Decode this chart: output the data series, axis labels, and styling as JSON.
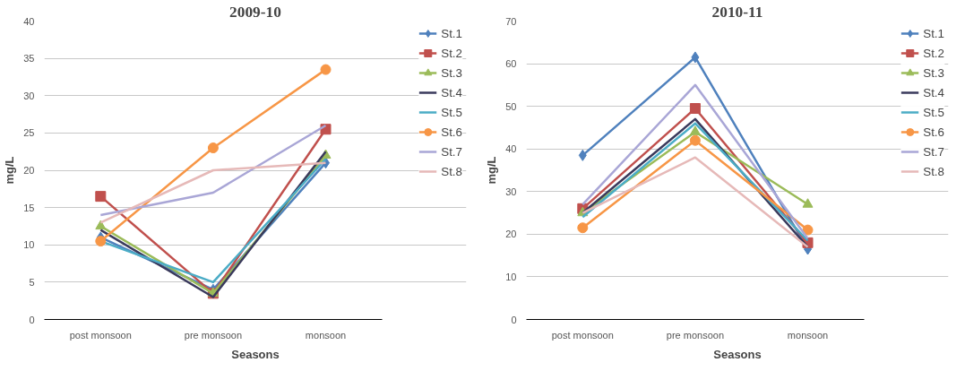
{
  "chart_data": [
    {
      "type": "line",
      "title": "2009-10",
      "xlabel": "Seasons",
      "ylabel": "mg/L",
      "categories": [
        "post monsoon",
        "pre monsoon",
        "monsoon"
      ],
      "ylim": [
        0,
        40
      ],
      "yticks": [
        0,
        5,
        10,
        15,
        20,
        25,
        30,
        35,
        40
      ],
      "grid": "y",
      "legend": "right",
      "series": [
        {
          "name": "St.1",
          "color": "#4f81bd",
          "marker": "diamond",
          "values": [
            11,
            4,
            21
          ]
        },
        {
          "name": "St.2",
          "color": "#c0504d",
          "marker": "square",
          "values": [
            16.5,
            3.5,
            25.5
          ]
        },
        {
          "name": "St.3",
          "color": "#9bbb59",
          "marker": "triangle",
          "values": [
            12.5,
            3.5,
            22
          ]
        },
        {
          "name": "St.4",
          "color": "#3a3a5c",
          "marker": "none",
          "values": [
            12,
            3,
            22.5
          ]
        },
        {
          "name": "St.5",
          "color": "#4bacc6",
          "marker": "none",
          "values": [
            10.5,
            5,
            21.5
          ]
        },
        {
          "name": "St.6",
          "color": "#f79646",
          "marker": "circle",
          "values": [
            10.5,
            23,
            33.5
          ]
        },
        {
          "name": "St.7",
          "color": "#a9a6d6",
          "marker": "none",
          "values": [
            14,
            17,
            26
          ]
        },
        {
          "name": "St.8",
          "color": "#e6b9b8",
          "marker": "none",
          "values": [
            13,
            20,
            21
          ]
        }
      ]
    },
    {
      "type": "line",
      "title": "2010-11",
      "xlabel": "Seasons",
      "ylabel": "mg/L",
      "categories": [
        "post monsoon",
        "pre monsoon",
        "monsoon"
      ],
      "ylim": [
        0,
        70
      ],
      "yticks": [
        0,
        10,
        20,
        30,
        40,
        50,
        60,
        70
      ],
      "grid": "y",
      "legend": "right",
      "series": [
        {
          "name": "St.1",
          "color": "#4f81bd",
          "marker": "diamond",
          "values": [
            38.5,
            61.5,
            16.5
          ]
        },
        {
          "name": "St.2",
          "color": "#c0504d",
          "marker": "square",
          "values": [
            26,
            49.5,
            18
          ]
        },
        {
          "name": "St.3",
          "color": "#9bbb59",
          "marker": "triangle",
          "values": [
            25,
            44,
            27
          ]
        },
        {
          "name": "St.4",
          "color": "#3a3a5c",
          "marker": "none",
          "values": [
            25,
            47,
            17
          ]
        },
        {
          "name": "St.5",
          "color": "#4bacc6",
          "marker": "none",
          "values": [
            24,
            46,
            18.5
          ]
        },
        {
          "name": "St.6",
          "color": "#f79646",
          "marker": "circle",
          "values": [
            21.5,
            42,
            21
          ]
        },
        {
          "name": "St.7",
          "color": "#a9a6d6",
          "marker": "none",
          "values": [
            27,
            55,
            19
          ]
        },
        {
          "name": "St.8",
          "color": "#e6b9b8",
          "marker": "none",
          "values": [
            25,
            38,
            17
          ]
        }
      ]
    }
  ]
}
